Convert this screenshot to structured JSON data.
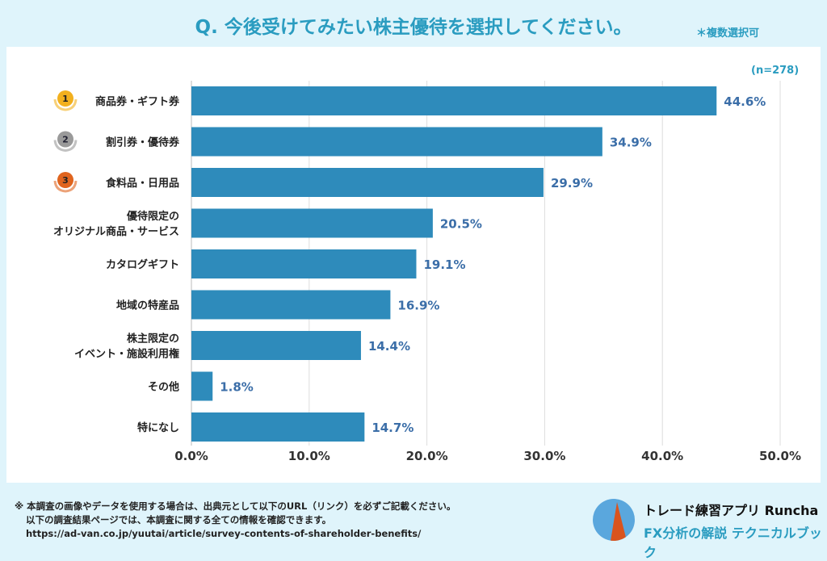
{
  "title": "Q. 今後受けてみたい株主優待を選択してください。",
  "note_multi": "＊複数選択可",
  "sample": "(n=278)",
  "chart_data": {
    "type": "bar",
    "orientation": "horizontal",
    "categories": [
      [
        "商品券・ギフト券"
      ],
      [
        "割引券・優待券"
      ],
      [
        "食料品・日用品"
      ],
      [
        "優待限定の",
        "オリジナル商品・サービス"
      ],
      [
        "カタログギフト"
      ],
      [
        "地域の特産品"
      ],
      [
        "株主限定の",
        "イベント・施設利用権"
      ],
      [
        "その他"
      ],
      [
        "特になし"
      ]
    ],
    "values": [
      44.6,
      34.9,
      29.9,
      20.5,
      19.1,
      16.9,
      14.4,
      1.8,
      14.7
    ],
    "value_labels": [
      "44.6%",
      "34.9%",
      "29.9%",
      "20.5%",
      "19.1%",
      "16.9%",
      "14.4%",
      "1.8%",
      "14.7%"
    ],
    "rank_badges": [
      "1",
      "2",
      "3"
    ],
    "rank_colors": [
      "#f2b01e",
      "#9a9a9a",
      "#e0641e"
    ],
    "xlim": [
      0,
      50
    ],
    "ticks": [
      "0.0%",
      "10.0%",
      "20.0%",
      "30.0%",
      "40.0%",
      "50.0%"
    ],
    "grid": true,
    "bar_color": "#2e8bbb",
    "label_color": "#3b6ea8"
  },
  "footer": {
    "line1": "※ 本調査の画像やデータを使用する場合は、出典元として以下のURL（リンク）を必ずご記載ください。",
    "line2": "以下の調査結果ページでは、本調査に関する全ての情報を確認できます。",
    "line3": "https://ad-van.co.jp/yuutai/article/survey-contents-of-shareholder-benefits/"
  },
  "brand": {
    "line1": "トレード練習アプリ Runcha",
    "line2": "FX分析の解説 テクニカルブック"
  }
}
